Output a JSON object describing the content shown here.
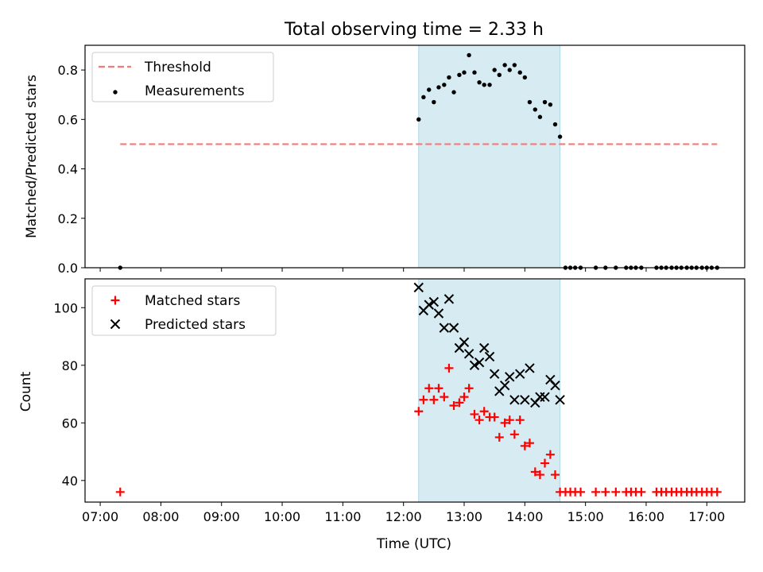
{
  "title": "Total observing time = 2.33 h",
  "chart_data": [
    {
      "type": "scatter",
      "panel": "top",
      "ylabel": "Matched/Predicted stars",
      "ylim": [
        0,
        0.9
      ],
      "yticks": [
        0.0,
        0.2,
        0.4,
        0.6,
        0.8
      ],
      "ytick_labels": [
        "0.0",
        "0.2",
        "0.4",
        "0.6",
        "0.8"
      ],
      "legend": {
        "placement": "top-left",
        "entries": [
          "Threshold",
          "Measurements"
        ]
      },
      "threshold": {
        "name": "Threshold",
        "style": "dashed",
        "color": "#f47a7a",
        "y": 0.5,
        "x_range": [
          7.33,
          17.17
        ]
      },
      "series": [
        {
          "name": "Measurements",
          "marker": "dot",
          "color": "#000000",
          "x": [
            7.33,
            12.25,
            12.33,
            12.42,
            12.5,
            12.58,
            12.67,
            12.75,
            12.83,
            12.92,
            13.0,
            13.08,
            13.17,
            13.25,
            13.33,
            13.42,
            13.5,
            13.58,
            13.67,
            13.75,
            13.83,
            13.92,
            14.0,
            14.08,
            14.17,
            14.25,
            14.33,
            14.42,
            14.5,
            14.58,
            14.67,
            14.75,
            14.83,
            14.92,
            15.17,
            15.33,
            15.5,
            15.67,
            15.75,
            15.83,
            15.92,
            16.17,
            16.25,
            16.33,
            16.42,
            16.5,
            16.58,
            16.67,
            16.75,
            16.83,
            16.92,
            17.0,
            17.08,
            17.17
          ],
          "y": [
            0.0,
            0.6,
            0.69,
            0.72,
            0.67,
            0.73,
            0.74,
            0.77,
            0.71,
            0.78,
            0.79,
            0.86,
            0.79,
            0.75,
            0.74,
            0.74,
            0.8,
            0.78,
            0.82,
            0.8,
            0.82,
            0.79,
            0.77,
            0.67,
            0.64,
            0.61,
            0.67,
            0.66,
            0.58,
            0.53,
            0.0,
            0.0,
            0.0,
            0.0,
            0.0,
            0.0,
            0.0,
            0.0,
            0.0,
            0.0,
            0.0,
            0.0,
            0.0,
            0.0,
            0.0,
            0.0,
            0.0,
            0.0,
            0.0,
            0.0,
            0.0,
            0.0,
            0.0,
            0.0
          ]
        }
      ]
    },
    {
      "type": "scatter",
      "panel": "bottom",
      "xlabel": "Time (UTC)",
      "ylabel": "Count",
      "xlim": [
        6.75,
        17.625
      ],
      "xticks": [
        7,
        8,
        9,
        10,
        11,
        12,
        13,
        14,
        15,
        16,
        17
      ],
      "xtick_labels": [
        "07:00",
        "08:00",
        "09:00",
        "10:00",
        "11:00",
        "12:00",
        "13:00",
        "14:00",
        "15:00",
        "16:00",
        "17:00"
      ],
      "ylim": [
        32.5,
        110
      ],
      "yticks": [
        40,
        60,
        80,
        100
      ],
      "ytick_labels": [
        "40",
        "60",
        "80",
        "100"
      ],
      "legend": {
        "placement": "top-left",
        "entries": [
          "Matched stars",
          "Predicted stars"
        ]
      },
      "series": [
        {
          "name": "Matched stars",
          "marker": "plus",
          "color": "#ff0000",
          "x": [
            7.33,
            12.25,
            12.33,
            12.42,
            12.5,
            12.58,
            12.67,
            12.75,
            12.83,
            12.92,
            13.0,
            13.08,
            13.17,
            13.25,
            13.33,
            13.42,
            13.5,
            13.58,
            13.67,
            13.75,
            13.83,
            13.92,
            14.0,
            14.08,
            14.17,
            14.25,
            14.33,
            14.42,
            14.5,
            14.58,
            14.67,
            14.75,
            14.83,
            14.92,
            15.17,
            15.33,
            15.5,
            15.67,
            15.75,
            15.83,
            15.92,
            16.17,
            16.25,
            16.33,
            16.42,
            16.5,
            16.58,
            16.67,
            16.75,
            16.83,
            16.92,
            17.0,
            17.08,
            17.17
          ],
          "y": [
            36,
            64,
            68,
            72,
            68,
            72,
            69,
            79,
            66,
            67,
            69,
            72,
            63,
            61,
            64,
            62,
            62,
            55,
            60,
            61,
            56,
            61,
            52,
            53,
            43,
            42,
            46,
            49,
            42,
            36,
            36,
            36,
            36,
            36,
            36,
            36,
            36,
            36,
            36,
            36,
            36,
            36,
            36,
            36,
            36,
            36,
            36,
            36,
            36,
            36,
            36,
            36,
            36,
            36
          ]
        },
        {
          "name": "Predicted stars",
          "marker": "x",
          "color": "#000000",
          "x": [
            12.25,
            12.33,
            12.42,
            12.5,
            12.58,
            12.67,
            12.75,
            12.83,
            12.92,
            13.0,
            13.08,
            13.17,
            13.25,
            13.33,
            13.42,
            13.5,
            13.58,
            13.67,
            13.75,
            13.83,
            13.92,
            14.0,
            14.08,
            14.17,
            14.25,
            14.33,
            14.42,
            14.5,
            14.58
          ],
          "y": [
            107,
            99,
            101,
            102,
            98,
            93,
            103,
            93,
            86,
            88,
            84,
            80,
            81,
            86,
            83,
            77,
            71,
            73,
            76,
            68,
            77,
            68,
            79,
            67,
            69,
            69,
            75,
            73,
            68
          ]
        }
      ]
    }
  ],
  "highlight": {
    "x_range": [
      12.25,
      14.58
    ],
    "color": "#add8e6"
  }
}
